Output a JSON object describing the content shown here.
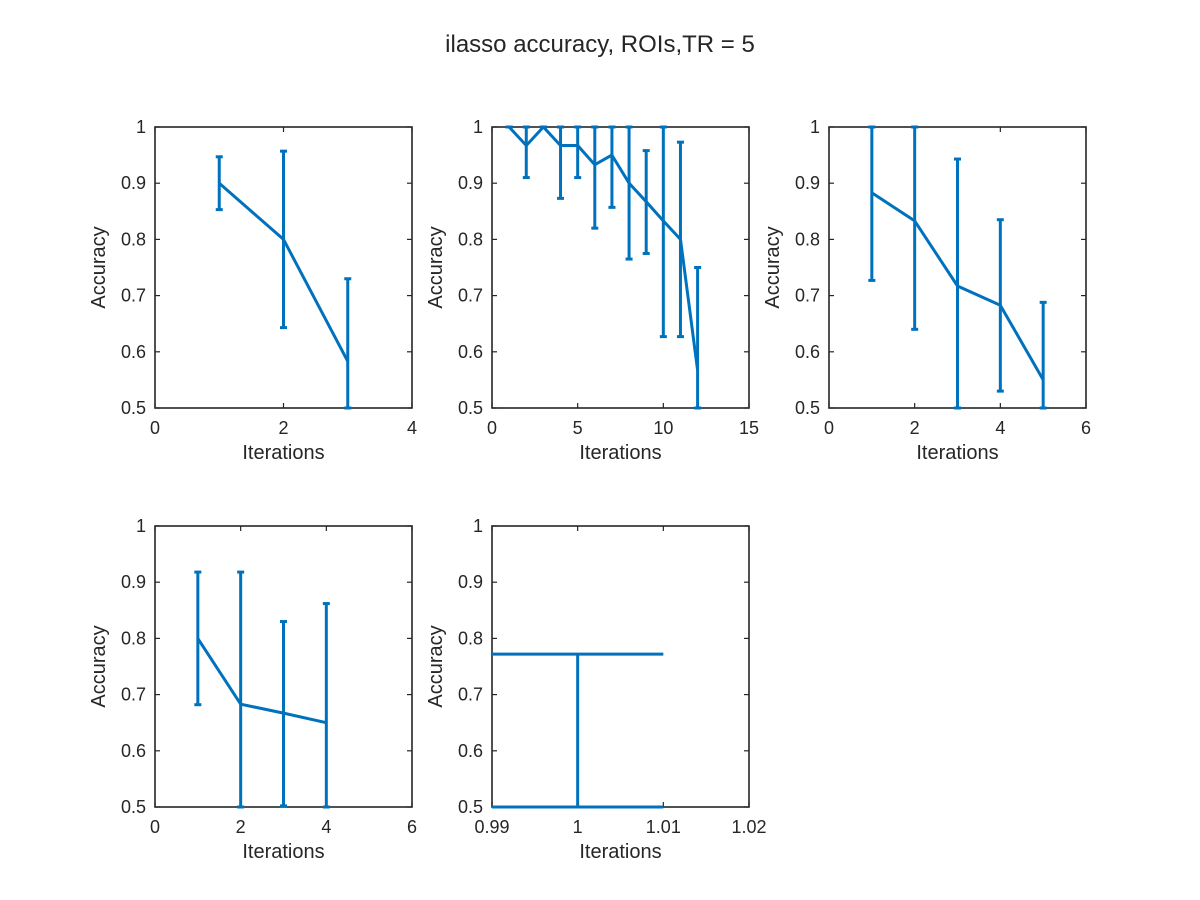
{
  "figure": {
    "title": "ilasso accuracy, ROIs,TR = 5",
    "line_color": "#0072BD",
    "axis_color": "#262626"
  },
  "chart_data": [
    {
      "type": "line",
      "error_bars": true,
      "xlabel": "Iterations",
      "ylabel": "Accuracy",
      "xlim": [
        0,
        4
      ],
      "ylim": [
        0.5,
        1
      ],
      "xticks": [
        "0",
        "2",
        "4"
      ],
      "yticks": [
        "0.5",
        "0.6",
        "0.7",
        "0.8",
        "0.9",
        "1"
      ],
      "x": [
        1,
        2,
        3
      ],
      "y": [
        0.9,
        0.8,
        0.583
      ],
      "lower": [
        0.853,
        0.643,
        0.5
      ],
      "upper": [
        0.947,
        0.957,
        0.73
      ]
    },
    {
      "type": "line",
      "error_bars": true,
      "xlabel": "Iterations",
      "ylabel": "Accuracy",
      "xlim": [
        0,
        15
      ],
      "ylim": [
        0.5,
        1
      ],
      "xticks": [
        "0",
        "5",
        "10",
        "15"
      ],
      "yticks": [
        "0.5",
        "0.6",
        "0.7",
        "0.8",
        "0.9",
        "1"
      ],
      "x": [
        1,
        2,
        3,
        4,
        5,
        6,
        7,
        8,
        9,
        10,
        11,
        12
      ],
      "y": [
        1.0,
        0.967,
        1.0,
        0.967,
        0.967,
        0.933,
        0.95,
        0.9,
        0.867,
        0.833,
        0.8,
        0.567
      ],
      "lower": [
        1.0,
        0.91,
        1.0,
        0.873,
        0.91,
        0.82,
        0.857,
        0.765,
        0.775,
        0.627,
        0.627,
        0.5
      ],
      "upper": [
        1.0,
        1.0,
        1.0,
        1.0,
        1.0,
        1.0,
        1.0,
        1.0,
        0.958,
        1.0,
        0.973,
        0.75
      ]
    },
    {
      "type": "line",
      "error_bars": true,
      "xlabel": "Iterations",
      "ylabel": "Accuracy",
      "xlim": [
        0,
        6
      ],
      "ylim": [
        0.5,
        1
      ],
      "xticks": [
        "0",
        "2",
        "4",
        "6"
      ],
      "yticks": [
        "0.5",
        "0.6",
        "0.7",
        "0.8",
        "0.9",
        "1"
      ],
      "x": [
        1,
        2,
        3,
        4,
        5
      ],
      "y": [
        0.883,
        0.833,
        0.717,
        0.683,
        0.55
      ],
      "lower": [
        0.727,
        0.64,
        0.5,
        0.53,
        0.5
      ],
      "upper": [
        1.0,
        1.0,
        0.943,
        0.835,
        0.688
      ]
    },
    {
      "type": "line",
      "error_bars": true,
      "xlabel": "Iterations",
      "ylabel": "Accuracy",
      "xlim": [
        0,
        6
      ],
      "ylim": [
        0.5,
        1
      ],
      "xticks": [
        "0",
        "2",
        "4",
        "6"
      ],
      "yticks": [
        "0.5",
        "0.6",
        "0.7",
        "0.8",
        "0.9",
        "1"
      ],
      "x": [
        1,
        2,
        3,
        4
      ],
      "y": [
        0.8,
        0.683,
        0.667,
        0.65
      ],
      "lower": [
        0.682,
        0.5,
        0.502,
        0.5
      ],
      "upper": [
        0.918,
        0.918,
        0.83,
        0.862
      ]
    },
    {
      "type": "line",
      "error_bars": true,
      "xlabel": "Iterations",
      "ylabel": "Accuracy",
      "xlim": [
        0.99,
        1.02
      ],
      "ylim": [
        0.5,
        1
      ],
      "xticks": [
        "0.99",
        "1",
        "1.01",
        "1.02"
      ],
      "yticks": [
        "0.5",
        "0.6",
        "0.7",
        "0.8",
        "0.9",
        "1"
      ],
      "x": [
        1
      ],
      "y": [
        0.772
      ],
      "lower": [
        0.5
      ],
      "upper": [
        0.772
      ],
      "cap_halfwidth": 0.01
    }
  ]
}
